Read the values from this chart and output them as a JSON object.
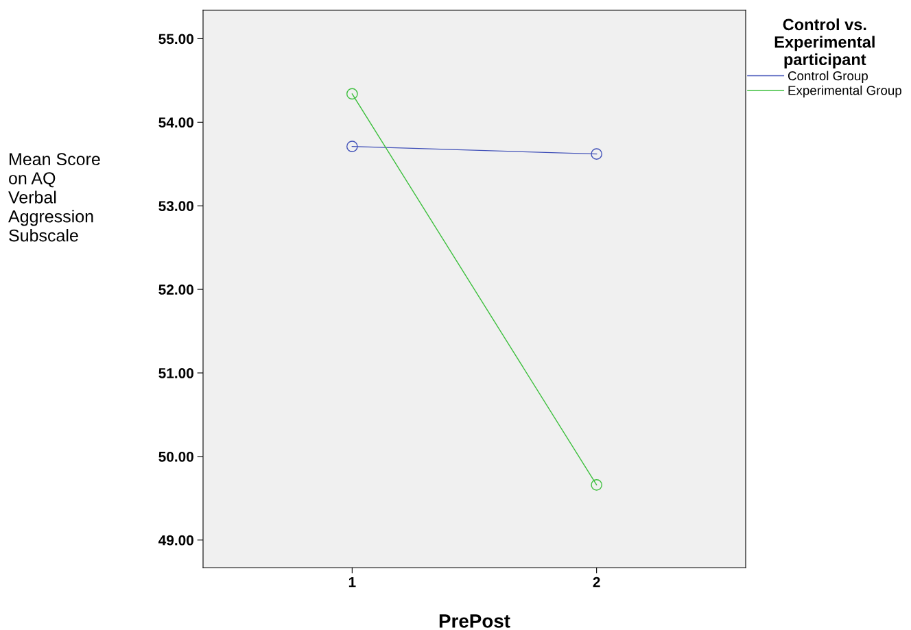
{
  "chart_data": {
    "type": "line",
    "xlabel": "PrePost",
    "ylabel": "Mean Score\non AQ\nVerbal\nAggression\nSubscale",
    "legend_title": "Control vs.\nExperimental\nparticipant",
    "x": [
      1,
      2
    ],
    "xlim": [
      0.39,
      2.61
    ],
    "xticks": [
      1,
      2
    ],
    "ylim": [
      48.67,
      55.34
    ],
    "yticks": [
      {
        "value": 49,
        "label": "49.00"
      },
      {
        "value": 50,
        "label": "50.00"
      },
      {
        "value": 51,
        "label": "51.00"
      },
      {
        "value": 52,
        "label": "52.00"
      },
      {
        "value": 53,
        "label": "53.00"
      },
      {
        "value": 54,
        "label": "54.00"
      },
      {
        "value": 55,
        "label": "55.00"
      }
    ],
    "series": [
      {
        "name": "Control Group",
        "color": "#4050b8",
        "values": [
          53.71,
          53.62
        ]
      },
      {
        "name": "Experimental Group",
        "color": "#3cbf3c",
        "values": [
          54.34,
          49.66
        ]
      }
    ],
    "marker": "circle",
    "line_style": "solid",
    "grid": false,
    "legend": "top right"
  }
}
